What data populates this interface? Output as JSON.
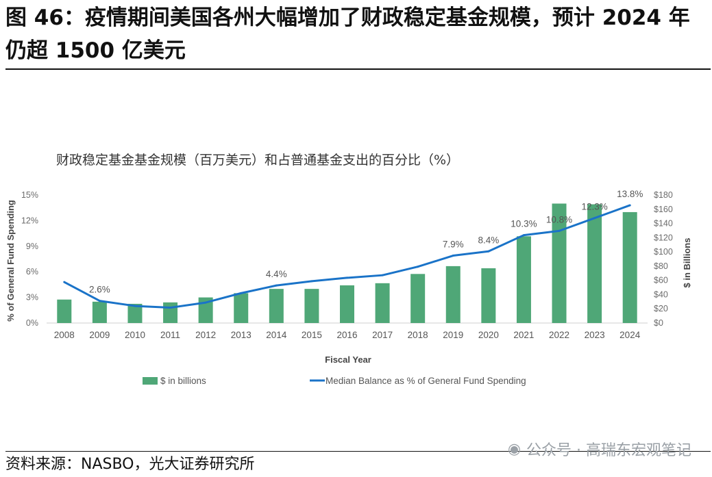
{
  "figure": {
    "title": "图 46：疫情期间美国各州大幅增加了财政稳定基金规模，预计 2024 年仍超 1500 亿美元",
    "source": "资料来源：NASBO，光大证券研究所",
    "watermark": "公众号 · 高瑞东宏观笔记"
  },
  "chart_data": {
    "type": "bar",
    "title": "财政稳定基金基金规模（百万美元）和占普通基金支出的百分比（%）",
    "xlabel": "Fiscal Year",
    "ylabel_left": "% of General Fund Spending",
    "ylabel_right": "$ in Billions",
    "categories": [
      "2008",
      "2009",
      "2010",
      "2011",
      "2012",
      "2013",
      "2014",
      "2015",
      "2016",
      "2017",
      "2018",
      "2019",
      "2020",
      "2021",
      "2022",
      "2023",
      "2024"
    ],
    "left_ticks": [
      "0%",
      "3%",
      "6%",
      "9%",
      "12%",
      "15%"
    ],
    "right_ticks": [
      "$0",
      "$20",
      "$40",
      "$60",
      "$80",
      "$100",
      "$120",
      "$140",
      "$160",
      "$180"
    ],
    "ylim_left": [
      0,
      15
    ],
    "ylim_right": [
      0,
      180
    ],
    "series": [
      {
        "name": "$ in billions",
        "type": "bar",
        "axis": "right",
        "color": "#4fa777",
        "values": [
          33,
          30,
          27,
          29,
          36,
          42,
          48,
          48,
          53,
          56,
          69,
          80,
          77,
          122,
          168,
          167,
          156
        ]
      },
      {
        "name": "Median Balance as % of General Fund Spending",
        "type": "line",
        "axis": "left",
        "color": "#1a73c8",
        "values": [
          4.8,
          2.6,
          2.0,
          1.8,
          2.4,
          3.5,
          4.4,
          4.9,
          5.3,
          5.6,
          6.6,
          7.9,
          8.4,
          10.3,
          10.8,
          12.3,
          13.8
        ]
      }
    ],
    "annotations": [
      {
        "index": 1,
        "text": "2.6%"
      },
      {
        "index": 6,
        "text": "4.4%"
      },
      {
        "index": 11,
        "text": "7.9%"
      },
      {
        "index": 12,
        "text": "8.4%"
      },
      {
        "index": 13,
        "text": "10.3%"
      },
      {
        "index": 14,
        "text": "10.8%"
      },
      {
        "index": 15,
        "text": "12.3%"
      },
      {
        "index": 16,
        "text": "13.8%"
      }
    ]
  }
}
